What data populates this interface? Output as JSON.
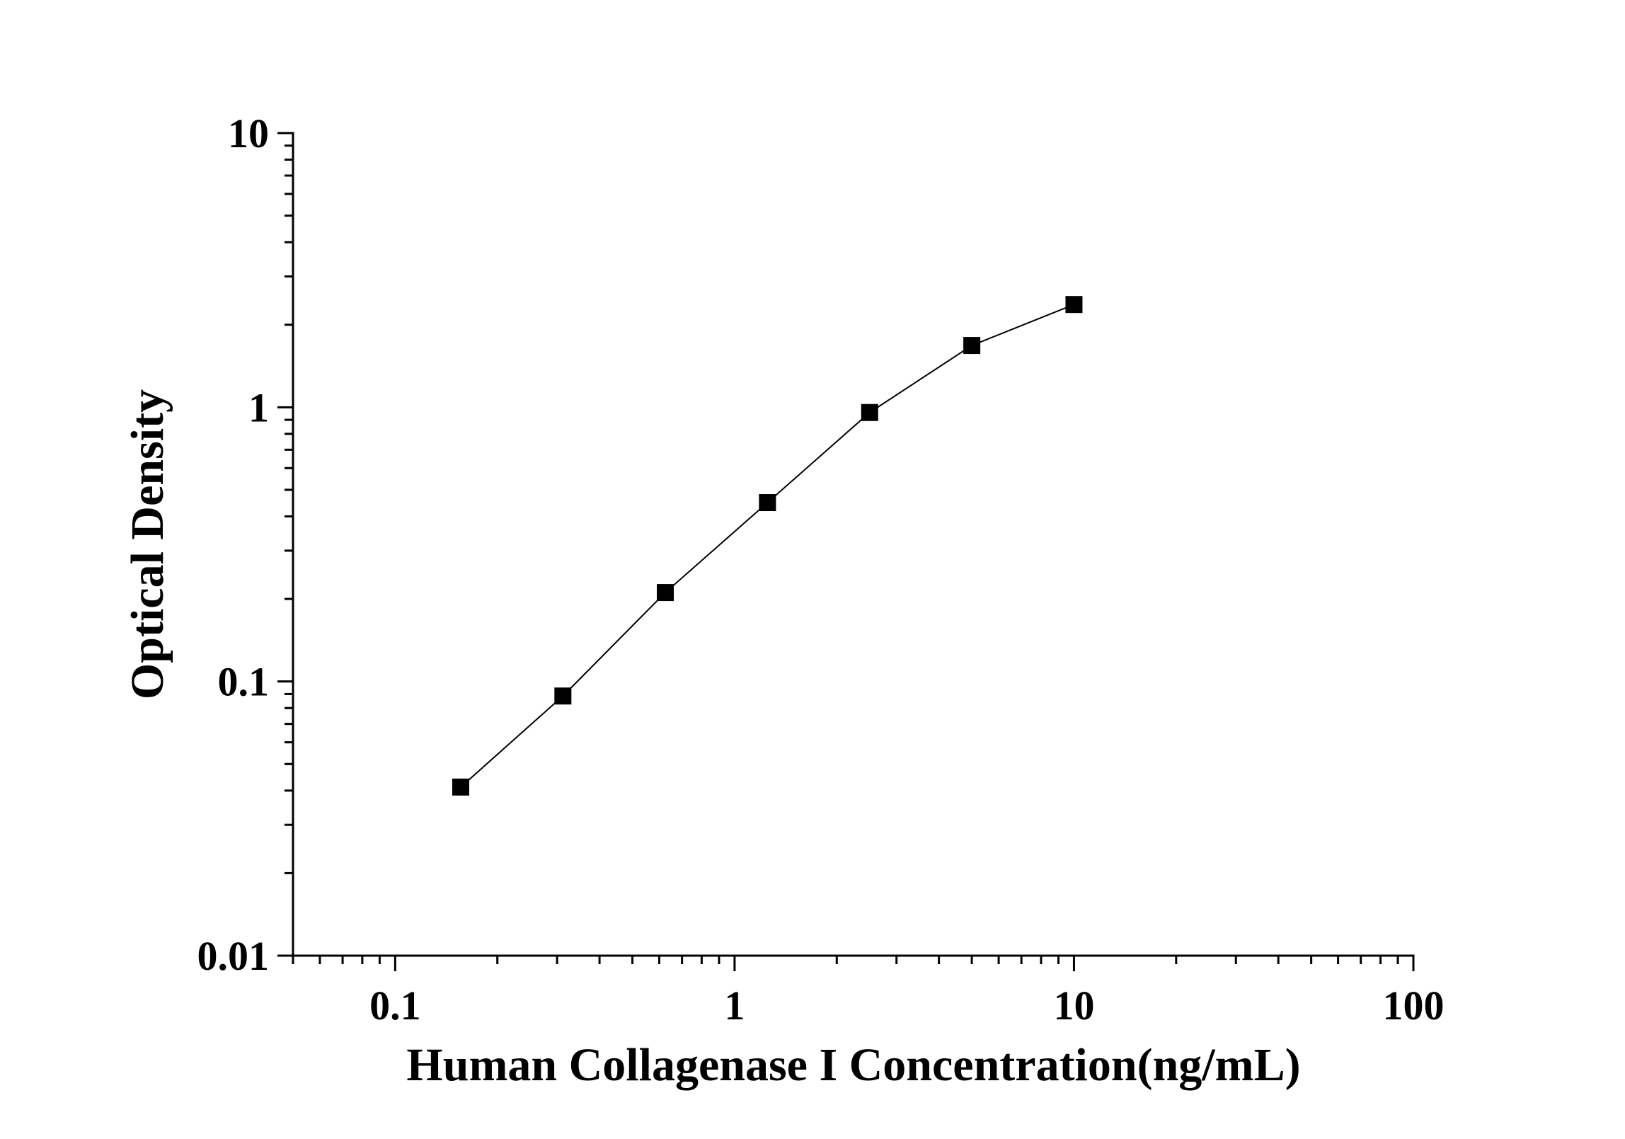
{
  "chart_data": {
    "type": "line",
    "x_label": "Human Collagenase I Concentration(ng/mL)",
    "y_label": "Optical Density",
    "x": [
      0.156,
      0.312,
      0.625,
      1.25,
      2.5,
      5,
      10
    ],
    "series": [
      {
        "color": "#000000",
        "values": [
          0.0412,
          0.0885,
          0.211,
          0.449,
          0.957,
          1.68,
          2.37
        ]
      }
    ],
    "xlim": [
      0.05,
      100
    ],
    "ylim": [
      0.01,
      10
    ],
    "xticks": [
      0.1,
      1,
      10,
      100
    ],
    "yticks": [
      0.01,
      0.1,
      1,
      10
    ],
    "xscale": "log",
    "yscale": "log",
    "grid": false,
    "marker": "square"
  }
}
